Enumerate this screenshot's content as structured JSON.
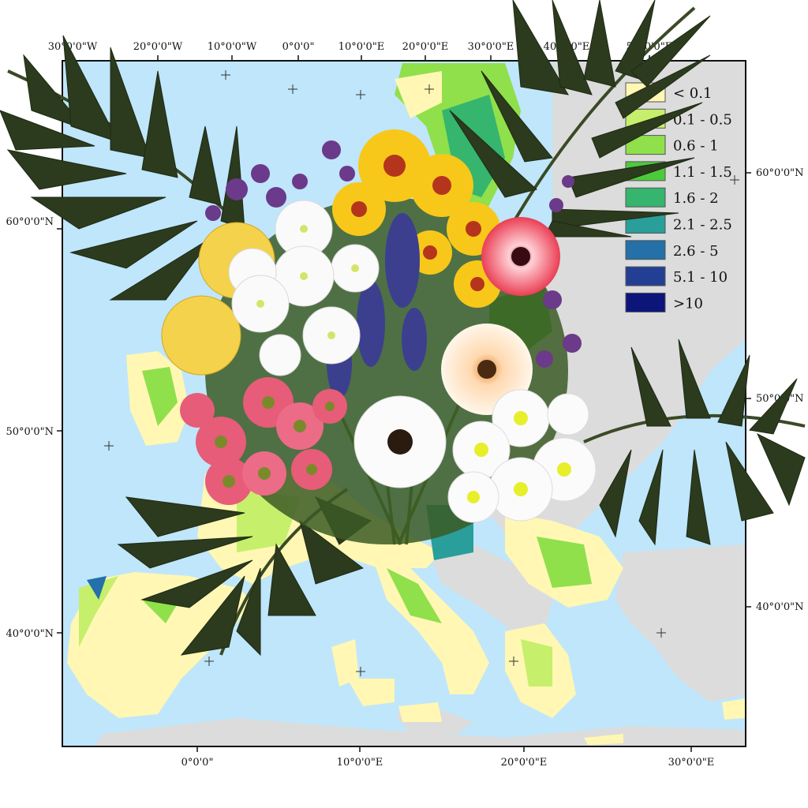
{
  "map": {
    "legend": {
      "classes": [
        {
          "label": "< 0.1",
          "color": "#fff7b3"
        },
        {
          "label": "0.1 - 0.5",
          "color": "#c6ef6b"
        },
        {
          "label": "0.6 - 1",
          "color": "#8fe04b"
        },
        {
          "label": "1.1 - 1.5",
          "color": "#4ccb3a"
        },
        {
          "label": "1.6 - 2",
          "color": "#35b56e"
        },
        {
          "label": "2.1 - 2.5",
          "color": "#2a9e9a"
        },
        {
          "label": "2.6 - 5",
          "color": "#2470a8"
        },
        {
          "label": "5.1 - 10",
          "color": "#233f93"
        },
        {
          "label": ">10",
          "color": "#0c157a"
        }
      ]
    },
    "top_ticks": [
      "30°0'0\"W",
      "20°0'0\"W",
      "10°0'0\"W",
      "0°0'0\"",
      "10°0'0\"E",
      "20°0'0\"E",
      "30°0'0\"E",
      "40°0'0\"E",
      "50°0'0\"E"
    ],
    "bottom_ticks": [
      "0°0'0\"",
      "10°0'0\"E",
      "20°0'0\"E",
      "30°0'0\"E"
    ],
    "left_ticks": [
      "60°0'0\"N",
      "50°0'0\"N",
      "40°0'0\"N"
    ],
    "right_ticks": [
      "60°0'0\"N",
      "50°0'0\"N",
      "40°0'0\"N"
    ],
    "colors": {
      "sea": "#bfe6fb",
      "other_land": "#dcdcdc",
      "frame": "#111111"
    }
  },
  "overlay": {
    "subject": "flower bouquet with palm fronds",
    "flowers": [
      "yellow chrysanthemum",
      "white daisy chrysanthemum",
      "pink daisy",
      "pink gerbera",
      "peach gerbera",
      "white gerbera",
      "purple limonium",
      "blue delphinium"
    ],
    "foliage": "palm leaves"
  }
}
